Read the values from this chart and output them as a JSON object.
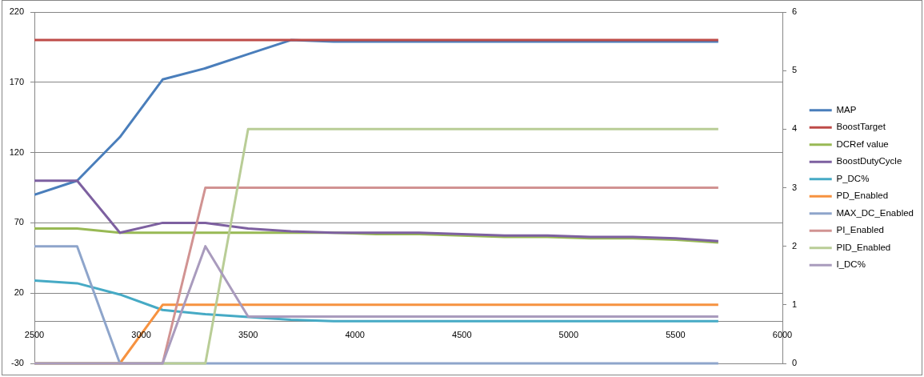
{
  "chart_data": {
    "type": "line",
    "x": [
      2500,
      2700,
      2900,
      3100,
      3300,
      3500,
      3700,
      3900,
      4100,
      4300,
      4500,
      4700,
      4900,
      5100,
      5300,
      5500,
      5700
    ],
    "xlim": [
      2500,
      6000
    ],
    "xticks": [
      2500,
      3000,
      3500,
      4000,
      4500,
      5000,
      5500,
      6000
    ],
    "ylim": [
      -30,
      220
    ],
    "yticks": [
      -30,
      20,
      70,
      120,
      170,
      220
    ],
    "y2lim": [
      0,
      6
    ],
    "y2ticks": [
      0,
      1,
      2,
      3,
      4,
      5,
      6
    ],
    "grid": "y",
    "legend": "right",
    "marker": "none",
    "line_style": "solid",
    "series": [
      {
        "name": "MAP",
        "color": "#4a7ebb",
        "values": [
          90,
          100,
          131,
          172,
          180,
          190,
          200,
          199,
          199,
          199,
          199,
          199,
          199,
          199,
          199,
          199,
          199
        ]
      },
      {
        "name": "BoostTarget",
        "color": "#be4b48",
        "values": [
          200,
          200,
          200,
          200,
          200,
          200,
          200,
          200,
          200,
          200,
          200,
          200,
          200,
          200,
          200,
          200,
          200
        ]
      },
      {
        "name": "DCRef value",
        "color": "#98b954",
        "values": [
          66,
          66,
          63,
          63,
          63,
          63,
          63,
          63,
          62,
          62,
          61,
          60,
          60,
          59,
          59,
          58,
          56
        ]
      },
      {
        "name": "BoostDutyCycle",
        "color": "#7d60a0",
        "values": [
          100,
          100,
          63,
          70,
          70,
          66,
          64,
          63,
          63,
          63,
          62,
          61,
          61,
          60,
          60,
          59,
          57
        ]
      },
      {
        "name": "P_DC%",
        "color": "#46aac5",
        "values": [
          29,
          27,
          19,
          8,
          5,
          3,
          1,
          0,
          0,
          0,
          0,
          0,
          0,
          0,
          0,
          0,
          0
        ]
      },
      {
        "name": "PD_Enabled",
        "color": "#f69240",
        "axis": "y2",
        "values": [
          0,
          0,
          0,
          1,
          1,
          1,
          1,
          1,
          1,
          1,
          1,
          1,
          1,
          1,
          1,
          1,
          1
        ]
      },
      {
        "name": "MAX_DC_Enabled",
        "color": "#8ea5cb",
        "axis": "y2",
        "values": [
          2,
          2,
          0,
          0,
          0,
          0,
          0,
          0,
          0,
          0,
          0,
          0,
          0,
          0,
          0,
          0,
          0
        ]
      },
      {
        "name": "PI_Enabled",
        "color": "#d19392",
        "axis": "y2",
        "values": [
          0,
          0,
          0,
          0,
          3,
          3,
          3,
          3,
          3,
          3,
          3,
          3,
          3,
          3,
          3,
          3,
          3
        ]
      },
      {
        "name": "PID_Enabled",
        "color": "#b9cd96",
        "axis": "y2",
        "values": [
          0,
          0,
          0,
          0,
          0,
          4,
          4,
          4,
          4,
          4,
          4,
          4,
          4,
          4,
          4,
          4,
          4
        ]
      },
      {
        "name": "I_DC%",
        "color": "#a99bbd",
        "axis": "y2",
        "values": [
          0,
          0,
          0,
          0,
          2,
          0.8,
          0.8,
          0.8,
          0.8,
          0.8,
          0.8,
          0.8,
          0.8,
          0.8,
          0.8,
          0.8,
          0.8
        ]
      }
    ]
  }
}
